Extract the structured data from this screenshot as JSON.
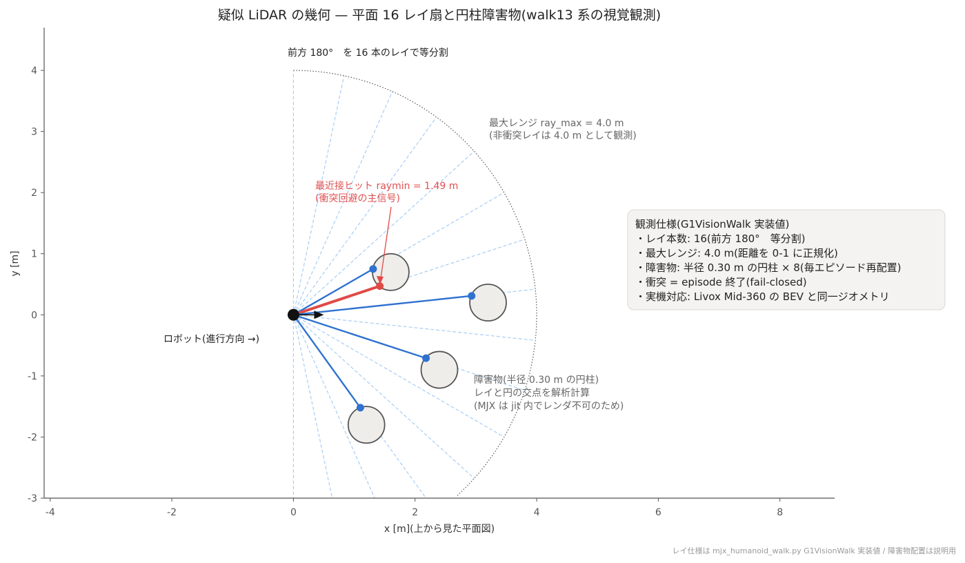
{
  "title": "疑似 LiDAR の幾何 — 平面 16 レイ扇と円柱障害物(walk13 系の視覚観測)",
  "chart_data": {
    "type": "diagram",
    "xlabel": "x [m](上から見た平面図)",
    "ylabel": "y [m]",
    "xlim": [
      -4.1,
      8.9
    ],
    "ylim": [
      -3.0,
      4.7
    ],
    "x_ticks": [
      -4,
      -2,
      0,
      2,
      4,
      6,
      8
    ],
    "y_ticks": [
      -3,
      -2,
      -1,
      0,
      1,
      2,
      3,
      4
    ],
    "robot": {
      "x": 0,
      "y": 0,
      "heading_deg": 0
    },
    "ray_max": 4.0,
    "ray_count": 16,
    "fan_span_deg": [
      -90,
      90
    ],
    "obstacles": [
      {
        "x": 1.6,
        "y": 0.7,
        "r": 0.3
      },
      {
        "x": 3.2,
        "y": 0.2,
        "r": 0.3
      },
      {
        "x": 2.4,
        "y": -0.9,
        "r": 0.3
      },
      {
        "x": 1.2,
        "y": -1.8,
        "r": 0.3
      }
    ],
    "hit_rays": [
      {
        "x": 1.31,
        "y": 0.75,
        "nearest": false
      },
      {
        "x": 1.42,
        "y": 0.47,
        "nearest": true
      },
      {
        "x": 2.93,
        "y": 0.31,
        "nearest": false
      },
      {
        "x": 2.18,
        "y": -0.71,
        "nearest": false
      },
      {
        "x": 1.1,
        "y": -1.52,
        "nearest": false
      }
    ]
  },
  "annotations": {
    "fan_label": "前方 180°　を 16 本のレイで等分割",
    "max_range_1": "最大レンジ ray_max = 4.0 m",
    "max_range_2": "(非衝突レイは 4.0 m として観測)",
    "nearest_1": "最近接ヒット raymin = 1.49 m",
    "nearest_2": "(衝突回避の主信号)",
    "robot_label": "ロボット(進行方向 →)",
    "obstacle_1": "障害物(半径 0.30 m の円柱)",
    "obstacle_2": "レイと円の交点を解析計算",
    "obstacle_3": "(MJX は jit 内でレンダ不可のため)"
  },
  "spec_box": {
    "title": "観測仕様(G1VisionWalk 実装値)",
    "lines": [
      "・レイ本数: 16(前方 180°　等分割)",
      "・最大レンジ: 4.0 m(距離を 0-1 に正規化)",
      "・障害物: 半径 0.30 m の円柱 × 8(毎エピソード再配置)",
      "・衝突 = episode 終了(fail-closed)",
      "・実機対応: Livox Mid-360 の BEV と同一ジオメトリ"
    ]
  },
  "footer": "レイ仕様は mjx_humanoid_walk.py G1VisionWalk 実装値 / 障害物配置は説明用",
  "colors": {
    "ray_fan": "#a8cdf5",
    "hit_ray": "#2f72d0",
    "nearest_ray": "#e04a46",
    "obstacle_fill": "#efedea",
    "obstacle_stroke": "#555555",
    "axis": "#555555"
  }
}
